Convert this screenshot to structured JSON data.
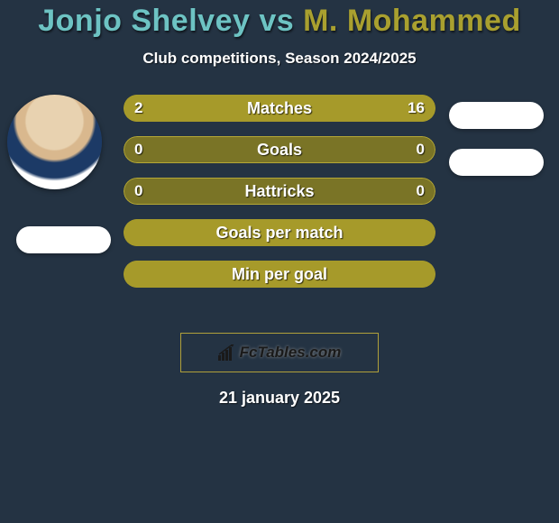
{
  "title": {
    "player1": "Jonjo Shelvey",
    "vs": " vs ",
    "player2": "M. Mohammed",
    "color1": "#6dc3c3",
    "color2": "#a9a02f"
  },
  "subtitle": "Club competitions, Season 2024/2025",
  "colors": {
    "bar_primary": "#a69a2a",
    "bar_secondary": "#7a7426",
    "bar_border": "#b5a836",
    "text": "#ffffff"
  },
  "stats": [
    {
      "label": "Matches",
      "left_val": "2",
      "right_val": "16",
      "left_pct": 11,
      "right_pct": 89
    },
    {
      "label": "Goals",
      "left_val": "0",
      "right_val": "0",
      "left_pct": 0,
      "right_pct": 0
    },
    {
      "label": "Hattricks",
      "left_val": "0",
      "right_val": "0",
      "left_pct": 0,
      "right_pct": 0
    },
    {
      "label": "Goals per match",
      "left_val": "",
      "right_val": "",
      "left_pct": 100,
      "right_pct": 0
    },
    {
      "label": "Min per goal",
      "left_val": "",
      "right_val": "",
      "left_pct": 100,
      "right_pct": 0
    }
  ],
  "branding": "FcTables.com",
  "date": "21 january 2025"
}
